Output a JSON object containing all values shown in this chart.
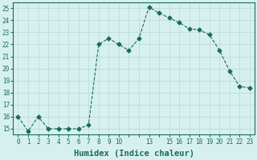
{
  "x": [
    0,
    1,
    2,
    3,
    4,
    5,
    6,
    7,
    8,
    9,
    10,
    11,
    12,
    13,
    14,
    15,
    16,
    17,
    18,
    19,
    20,
    21,
    22,
    23
  ],
  "y": [
    16,
    14.8,
    16,
    15,
    15,
    15,
    15,
    15.3,
    22,
    22.5,
    22,
    21.5,
    22.5,
    25.1,
    24.6,
    24.2,
    23.8,
    23.3,
    23.2,
    22.8,
    21.5,
    19.8,
    18.5,
    18.4
  ],
  "line_color": "#1a6b5a",
  "marker": "D",
  "marker_size": 2.5,
  "bg_color": "#d6f0f0",
  "grid_color": "#b8d8d8",
  "xlabel": "Humidex (Indice chaleur)",
  "xlabel_fontsize": 7.5,
  "xtick_labels": [
    "0",
    "1",
    "2",
    "3",
    "4",
    "5",
    "6",
    "7",
    "8",
    "9",
    "10",
    "",
    "",
    "13",
    "",
    "15",
    "16",
    "17",
    "18",
    "19",
    "20",
    "21",
    "22",
    "23"
  ],
  "xtick_positions": [
    0,
    1,
    2,
    3,
    4,
    5,
    6,
    7,
    8,
    9,
    10,
    11,
    12,
    13,
    14,
    15,
    16,
    17,
    18,
    19,
    20,
    21,
    22,
    23
  ],
  "ytick_labels": [
    "15",
    "16",
    "17",
    "18",
    "19",
    "20",
    "21",
    "22",
    "23",
    "24",
    "25"
  ],
  "ytick_positions": [
    15,
    16,
    17,
    18,
    19,
    20,
    21,
    22,
    23,
    24,
    25
  ],
  "ylim": [
    14.5,
    25.5
  ],
  "xlim": [
    -0.5,
    23.5
  ]
}
